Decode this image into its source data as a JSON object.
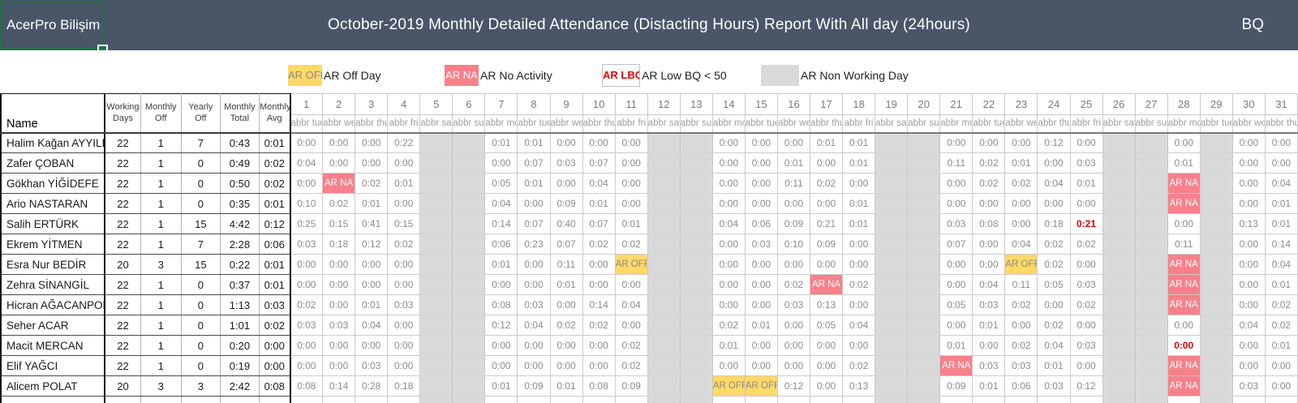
{
  "header": {
    "brand": "AcerPro Bilişim",
    "title": "October-2019 Monthly Detailed Attendance (Distacting Hours) Report With All day (24hours)",
    "right_label": "BQ"
  },
  "legend": {
    "items": [
      {
        "chip": "AR OFF",
        "style": "off",
        "label": "AR Off Day"
      },
      {
        "chip": "AR NA",
        "style": "na",
        "label": "AR No Activity"
      },
      {
        "chip": "AR LBQ",
        "style": "lbq",
        "label": "AR Low BQ < 50"
      },
      {
        "chip": "",
        "style": "nw",
        "label": "AR Non Working Day"
      }
    ]
  },
  "table": {
    "name_header": "Name",
    "summary_headers": [
      [
        "Working",
        "Days"
      ],
      [
        "Monthly",
        "Off"
      ],
      [
        "Yearly",
        "Off"
      ],
      [
        "Monthly",
        "Total"
      ],
      [
        "Monthly",
        "Avg"
      ]
    ],
    "day_numbers": [
      1,
      2,
      3,
      4,
      5,
      6,
      7,
      8,
      9,
      10,
      11,
      12,
      13,
      14,
      15,
      16,
      17,
      18,
      19,
      20,
      21,
      22,
      23,
      24,
      25,
      26,
      27,
      28,
      29,
      30,
      31
    ],
    "day_abbrs": [
      "abbr tue",
      "abbr wed",
      "abbr thu",
      "abbr fri",
      "abbr sat",
      "abbr sun",
      "abbr mon",
      "abbr tue",
      "abbr wed",
      "abbr thu",
      "abbr fri",
      "abbr sat",
      "abbr sun",
      "abbr mon",
      "abbr tue",
      "abbr wed",
      "abbr thu",
      "abbr fri",
      "abbr sat",
      "abbr sun",
      "abbr mon",
      "abbr tue",
      "abbr wed",
      "abbr thu",
      "abbr fri",
      "abbr sat",
      "abbr sun",
      "abbr mon",
      "abbr tue",
      "abbr wed",
      "abbr thu"
    ],
    "non_working_days": [
      5,
      6,
      12,
      13,
      19,
      20,
      26,
      27,
      29
    ],
    "na_text": "AR NA",
    "off_text": "AR OFF",
    "rows": [
      {
        "name": "Halim Kağan AYYILDIZ",
        "summary": [
          "22",
          "1",
          "7",
          "0:43",
          "0:01"
        ],
        "days": {
          "1": "0:00",
          "2": "0:00",
          "3": "0:00",
          "4": "0:22",
          "7": "0:01",
          "8": "0:01",
          "9": "0:00",
          "10": "0:00",
          "11": "0:00",
          "14": "0:00",
          "15": "0:00",
          "16": "0:00",
          "17": "0:01",
          "18": "0:01",
          "21": "0:00",
          "22": "0:00",
          "23": "0:00",
          "24": "0:12",
          "25": "0:00",
          "28": "0:00",
          "30": "0:00",
          "31": "0:00"
        }
      },
      {
        "name": "Zafer ÇOBAN",
        "summary": [
          "22",
          "1",
          "0",
          "0:49",
          "0:02"
        ],
        "days": {
          "1": "0:04",
          "2": "0:00",
          "3": "0:00",
          "4": "0:00",
          "7": "0:00",
          "8": "0:07",
          "9": "0:03",
          "10": "0:07",
          "11": "0:00",
          "14": "0:00",
          "15": "0:00",
          "16": "0:01",
          "17": "0:00",
          "18": "0:01",
          "21": "0:11",
          "22": "0:02",
          "23": "0:01",
          "24": "0:00",
          "25": "0:03",
          "28": "0:01",
          "30": "0:00",
          "31": "0:00"
        }
      },
      {
        "name": "Gökhan YİĞİDEFE",
        "summary": [
          "22",
          "1",
          "0",
          "0:50",
          "0:02"
        ],
        "days": {
          "1": "0:00",
          "2": "NA",
          "3": "0:02",
          "4": "0:01",
          "7": "0:05",
          "8": "0:01",
          "9": "0:00",
          "10": "0:04",
          "11": "0:00",
          "14": "0:00",
          "15": "0:00",
          "16": "0:11",
          "17": "0:02",
          "18": "0:00",
          "21": "0:00",
          "22": "0:02",
          "23": "0:02",
          "24": "0:04",
          "25": "0:01",
          "28": "NA",
          "30": "0:00",
          "31": "0:04"
        }
      },
      {
        "name": "Ario NASTARAN",
        "summary": [
          "22",
          "1",
          "0",
          "0:35",
          "0:01"
        ],
        "days": {
          "1": "0:10",
          "2": "0:02",
          "3": "0:01",
          "4": "0:00",
          "7": "0:04",
          "8": "0:00",
          "9": "0:09",
          "10": "0:01",
          "11": "0:00",
          "14": "0:00",
          "15": "0:00",
          "16": "0:00",
          "17": "0:00",
          "18": "0:01",
          "21": "0:00",
          "22": "0:00",
          "23": "0:00",
          "24": "0:00",
          "25": "0:00",
          "28": "NA",
          "30": "0:00",
          "31": "0:01"
        }
      },
      {
        "name": "Salih ERTÜRK",
        "summary": [
          "22",
          "1",
          "15",
          "4:42",
          "0:12"
        ],
        "days": {
          "1": "0:25",
          "2": "0:15",
          "3": "0:41",
          "4": "0:15",
          "7": "0:14",
          "8": "0:07",
          "9": "0:40",
          "10": "0:07",
          "11": "0:01",
          "14": "0:04",
          "15": "0:06",
          "16": "0:09",
          "17": "0:21",
          "18": "0:01",
          "21": "0:03",
          "22": "0:08",
          "23": "0:00",
          "24": "0:18",
          "25": "!0:21",
          "28": "0:00",
          "30": "0:13",
          "31": "0:01"
        }
      },
      {
        "name": "Ekrem YİTMEN",
        "summary": [
          "22",
          "1",
          "7",
          "2:28",
          "0:06"
        ],
        "days": {
          "1": "0:03",
          "2": "0:18",
          "3": "0:12",
          "4": "0:02",
          "7": "0:06",
          "8": "0:23",
          "9": "0:07",
          "10": "0:02",
          "11": "0:02",
          "14": "0:00",
          "15": "0:03",
          "16": "0:10",
          "17": "0:09",
          "18": "0:00",
          "21": "0:07",
          "22": "0:00",
          "23": "0:04",
          "24": "0:02",
          "25": "0:02",
          "28": "0:11",
          "30": "0:00",
          "31": "0:14"
        }
      },
      {
        "name": "Esra Nur BEDİR",
        "summary": [
          "20",
          "3",
          "15",
          "0:22",
          "0:01"
        ],
        "days": {
          "1": "0:00",
          "2": "0:00",
          "3": "0:00",
          "4": "0:00",
          "7": "0:01",
          "8": "0:00",
          "9": "0:11",
          "10": "0:00",
          "11": "OFF",
          "14": "0:00",
          "15": "0:00",
          "16": "0:00",
          "17": "0:00",
          "18": "0:00",
          "21": "0:00",
          "22": "0:00",
          "23": "OFF",
          "24": "0:02",
          "25": "0:00",
          "28": "NA",
          "30": "0:00",
          "31": "0:04"
        }
      },
      {
        "name": "Zehra SİNANGİL",
        "summary": [
          "22",
          "1",
          "0",
          "0:37",
          "0:01"
        ],
        "days": {
          "1": "0:00",
          "2": "0:00",
          "3": "0:00",
          "4": "0:00",
          "7": "0:00",
          "8": "0:00",
          "9": "0:01",
          "10": "0:00",
          "11": "0:00",
          "14": "0:00",
          "15": "0:00",
          "16": "0:02",
          "17": "NA",
          "18": "0:02",
          "21": "0:00",
          "22": "0:04",
          "23": "0:11",
          "24": "0:05",
          "25": "0:03",
          "28": "NA",
          "30": "0:00",
          "31": "0:01"
        }
      },
      {
        "name": "Hicran AĞACANPOLAT",
        "summary": [
          "22",
          "1",
          "0",
          "1:13",
          "0:03"
        ],
        "days": {
          "1": "0:02",
          "2": "0:00",
          "3": "0:01",
          "4": "0:03",
          "7": "0:08",
          "8": "0:03",
          "9": "0:00",
          "10": "0:14",
          "11": "0:04",
          "14": "0:00",
          "15": "0:00",
          "16": "0:03",
          "17": "0:13",
          "18": "0:00",
          "21": "0:05",
          "22": "0:03",
          "23": "0:02",
          "24": "0:00",
          "25": "0:02",
          "28": "NA",
          "30": "0:00",
          "31": "0:02"
        }
      },
      {
        "name": "Seher ACAR",
        "summary": [
          "22",
          "1",
          "0",
          "1:01",
          "0:02"
        ],
        "days": {
          "1": "0:03",
          "2": "0:03",
          "3": "0:04",
          "4": "0:00",
          "7": "0:12",
          "8": "0:04",
          "9": "0:02",
          "10": "0:02",
          "11": "0:00",
          "14": "0:02",
          "15": "0:01",
          "16": "0:00",
          "17": "0:05",
          "18": "0:04",
          "21": "0:00",
          "22": "0:01",
          "23": "0:00",
          "24": "0:02",
          "25": "0:00",
          "28": "0:00",
          "30": "0:04",
          "31": "0:02"
        }
      },
      {
        "name": "Macit MERCAN",
        "summary": [
          "22",
          "1",
          "0",
          "0:20",
          "0:00"
        ],
        "days": {
          "1": "0:00",
          "2": "0:00",
          "3": "0:00",
          "4": "0:00",
          "7": "0:00",
          "8": "0:00",
          "9": "0:00",
          "10": "0:00",
          "11": "0:02",
          "14": "0:01",
          "15": "0:00",
          "16": "0:00",
          "17": "0:00",
          "18": "0:00",
          "21": "0:01",
          "22": "0:00",
          "23": "0:02",
          "24": "0:04",
          "25": "0:03",
          "28": "!0:00",
          "30": "0:00",
          "31": "0:01"
        }
      },
      {
        "name": "Elif YAĞCI",
        "summary": [
          "22",
          "1",
          "0",
          "0:19",
          "0:00"
        ],
        "days": {
          "1": "0:00",
          "2": "0:00",
          "3": "0:03",
          "4": "0:00",
          "7": "0:00",
          "8": "0:00",
          "9": "0:00",
          "10": "0:00",
          "11": "0:02",
          "14": "0:00",
          "15": "0:00",
          "16": "0:00",
          "17": "0:00",
          "18": "0:02",
          "21": "NA",
          "22": "0:03",
          "23": "0:03",
          "24": "0:01",
          "25": "0:00",
          "28": "NA",
          "30": "0:00",
          "31": "0:00"
        }
      },
      {
        "name": "Alicem POLAT",
        "summary": [
          "20",
          "3",
          "3",
          "2:42",
          "0:08"
        ],
        "days": {
          "1": "0:08",
          "2": "0:14",
          "3": "0:28",
          "4": "0:18",
          "7": "0:01",
          "8": "0:09",
          "9": "0:01",
          "10": "0:08",
          "11": "0:09",
          "14": "OFF",
          "15": "OFF",
          "16": "0:12",
          "17": "0:00",
          "18": "0:13",
          "21": "0:09",
          "22": "0:01",
          "23": "0:06",
          "24": "0:03",
          "25": "0:12",
          "28": "NA",
          "30": "0:03",
          "31": "0:00"
        }
      }
    ]
  }
}
